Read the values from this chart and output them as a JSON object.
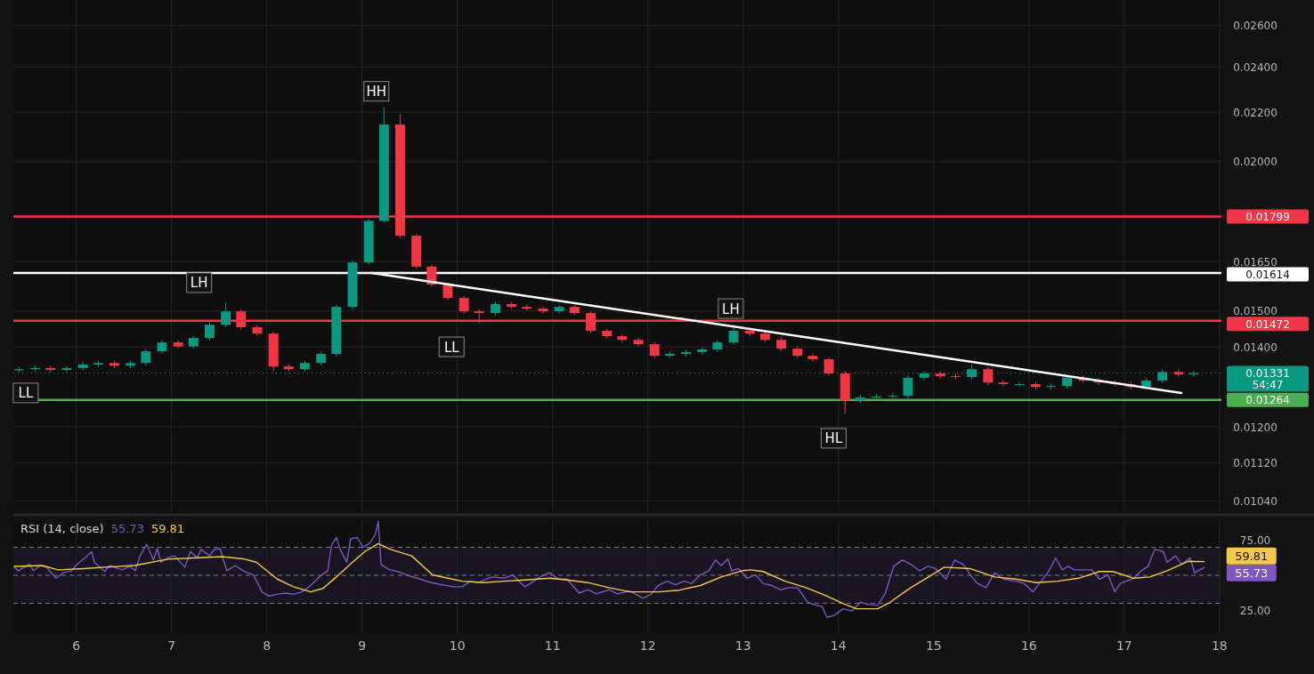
{
  "chart_data": [
    {
      "type": "candlestick",
      "log": true,
      "grid": true,
      "tick_labels": "y",
      "xlim": [
        5.34,
        18.02
      ],
      "xticks": [
        6,
        7,
        8,
        9,
        10,
        11,
        12,
        13,
        14,
        15,
        16,
        17,
        18
      ],
      "ylim": [
        0.0102,
        0.0273
      ],
      "yticks": [
        {
          "value": 0.0104,
          "label": "0.01040"
        },
        {
          "value": 0.0112,
          "label": "0.01120"
        },
        {
          "value": 0.012,
          "label": "0.01200"
        },
        {
          "value": 0.014,
          "label": "0.01400"
        },
        {
          "value": 0.015,
          "label": "0.01500"
        },
        {
          "value": 0.0165,
          "label": "0.01650"
        },
        {
          "value": 0.02,
          "label": "0.02000"
        },
        {
          "value": 0.022,
          "label": "0.02200"
        },
        {
          "value": 0.024,
          "label": "0.02400"
        },
        {
          "value": 0.026,
          "label": "0.02600"
        }
      ],
      "x": [
        5.4,
        5.57,
        5.73,
        5.9,
        6.07,
        6.23,
        6.4,
        6.57,
        6.73,
        6.9,
        7.07,
        7.23,
        7.4,
        7.57,
        7.73,
        7.9,
        8.07,
        8.23,
        8.4,
        8.57,
        8.73,
        8.9,
        9.07,
        9.23,
        9.4,
        9.57,
        9.73,
        9.9,
        10.07,
        10.23,
        10.4,
        10.57,
        10.73,
        10.9,
        11.07,
        11.23,
        11.4,
        11.57,
        11.73,
        11.9,
        12.07,
        12.23,
        12.4,
        12.57,
        12.73,
        12.9,
        13.07,
        13.23,
        13.4,
        13.57,
        13.73,
        13.9,
        14.07,
        14.23,
        14.4,
        14.57,
        14.73,
        14.9,
        15.07,
        15.23,
        15.4,
        15.57,
        15.73,
        15.9,
        16.07,
        16.23,
        16.4,
        16.57,
        16.73,
        16.9,
        17.07,
        17.23,
        17.4,
        17.57,
        17.73
      ],
      "ohlc": [
        [
          0.01338,
          0.01347,
          0.01333,
          0.01341
        ],
        [
          0.01341,
          0.0135,
          0.01335,
          0.01344
        ],
        [
          0.01344,
          0.0135,
          0.01333,
          0.01339
        ],
        [
          0.01339,
          0.0135,
          0.01333,
          0.01344
        ],
        [
          0.01344,
          0.01359,
          0.01338,
          0.01353
        ],
        [
          0.01353,
          0.01363,
          0.01347,
          0.01357
        ],
        [
          0.01357,
          0.01363,
          0.01344,
          0.0135
        ],
        [
          0.0135,
          0.01363,
          0.01344,
          0.01357
        ],
        [
          0.01357,
          0.01394,
          0.01351,
          0.01388
        ],
        [
          0.01388,
          0.01418,
          0.01382,
          0.01412
        ],
        [
          0.01412,
          0.01418,
          0.01395,
          0.01401
        ],
        [
          0.01401,
          0.0143,
          0.01395,
          0.01424
        ],
        [
          0.01424,
          0.01467,
          0.01418,
          0.01461
        ],
        [
          0.01461,
          0.01525,
          0.01455,
          0.01499
        ],
        [
          0.01499,
          0.01505,
          0.01448,
          0.01454
        ],
        [
          0.01454,
          0.0146,
          0.0143,
          0.01436
        ],
        [
          0.01436,
          0.01442,
          0.01335,
          0.01348
        ],
        [
          0.01348,
          0.01354,
          0.01335,
          0.01341
        ],
        [
          0.01341,
          0.01363,
          0.01335,
          0.01357
        ],
        [
          0.01357,
          0.01387,
          0.01351,
          0.01381
        ],
        [
          0.01381,
          0.01518,
          0.01375,
          0.01512
        ],
        [
          0.01512,
          0.01653,
          0.01506,
          0.01647
        ],
        [
          0.01647,
          0.0179,
          0.01641,
          0.01784
        ],
        [
          0.01784,
          0.0222,
          0.01778,
          0.02148
        ],
        [
          0.02148,
          0.0219,
          0.01728,
          0.01734
        ],
        [
          0.01734,
          0.0174,
          0.01628,
          0.01634
        ],
        [
          0.01634,
          0.0164,
          0.01572,
          0.01578
        ],
        [
          0.01578,
          0.01584,
          0.01532,
          0.01538
        ],
        [
          0.01538,
          0.01544,
          0.01493,
          0.01499
        ],
        [
          0.01499,
          0.01505,
          0.01465,
          0.01494
        ],
        [
          0.01494,
          0.01526,
          0.01488,
          0.0152
        ],
        [
          0.0152,
          0.01526,
          0.01506,
          0.01512
        ],
        [
          0.01512,
          0.01518,
          0.01501,
          0.01507
        ],
        [
          0.01507,
          0.01513,
          0.01493,
          0.01499
        ],
        [
          0.01499,
          0.01518,
          0.01493,
          0.01512
        ],
        [
          0.01512,
          0.01518,
          0.01488,
          0.01494
        ],
        [
          0.01494,
          0.015,
          0.01438,
          0.01444
        ],
        [
          0.01444,
          0.0145,
          0.01423,
          0.01429
        ],
        [
          0.01429,
          0.01435,
          0.01413,
          0.01419
        ],
        [
          0.01419,
          0.01425,
          0.01401,
          0.01407
        ],
        [
          0.01407,
          0.01413,
          0.0137,
          0.01376
        ],
        [
          0.01376,
          0.01387,
          0.0137,
          0.01381
        ],
        [
          0.01381,
          0.01392,
          0.01375,
          0.01386
        ],
        [
          0.01386,
          0.01399,
          0.0138,
          0.01393
        ],
        [
          0.01393,
          0.01418,
          0.01387,
          0.01412
        ],
        [
          0.01412,
          0.01461,
          0.01406,
          0.01444
        ],
        [
          0.01444,
          0.0145,
          0.0143,
          0.01436
        ],
        [
          0.01436,
          0.01442,
          0.01413,
          0.01419
        ],
        [
          0.01419,
          0.01425,
          0.01389,
          0.01395
        ],
        [
          0.01395,
          0.01401,
          0.0137,
          0.01376
        ],
        [
          0.01376,
          0.01382,
          0.01361,
          0.01367
        ],
        [
          0.01367,
          0.01373,
          0.01324,
          0.0133
        ],
        [
          0.0133,
          0.01336,
          0.01231,
          0.01262
        ],
        [
          0.01262,
          0.01276,
          0.01256,
          0.0127
        ],
        [
          0.0127,
          0.01278,
          0.01264,
          0.01272
        ],
        [
          0.01272,
          0.0128,
          0.01266,
          0.01274
        ],
        [
          0.01274,
          0.01325,
          0.01268,
          0.01319
        ],
        [
          0.01319,
          0.01336,
          0.01313,
          0.0133
        ],
        [
          0.0133,
          0.01336,
          0.01317,
          0.01323
        ],
        [
          0.01323,
          0.01329,
          0.01315,
          0.01321
        ],
        [
          0.01321,
          0.01353,
          0.01315,
          0.01341
        ],
        [
          0.01341,
          0.01347,
          0.01301,
          0.01307
        ],
        [
          0.01307,
          0.01313,
          0.01297,
          0.01303
        ],
        [
          0.01303,
          0.01309,
          0.01297,
          0.01303
        ],
        [
          0.01303,
          0.01309,
          0.0129,
          0.01296
        ],
        [
          0.01296,
          0.01304,
          0.0129,
          0.01298
        ],
        [
          0.01298,
          0.01325,
          0.01292,
          0.01319
        ],
        [
          0.01319,
          0.01325,
          0.01306,
          0.01312
        ],
        [
          0.01312,
          0.01318,
          0.01301,
          0.01307
        ],
        [
          0.01307,
          0.01313,
          0.01297,
          0.01303
        ],
        [
          0.01303,
          0.01309,
          0.0129,
          0.01296
        ],
        [
          0.01296,
          0.01318,
          0.0129,
          0.01312
        ],
        [
          0.01312,
          0.0134,
          0.01306,
          0.01334
        ],
        [
          0.01334,
          0.0134,
          0.01322,
          0.01328
        ],
        [
          0.01328,
          0.01337,
          0.01322,
          0.01331
        ]
      ],
      "series": [
        {
          "type": "line",
          "color": "#ffffff",
          "x": [
            9.1,
            17.6
          ],
          "values": [
            0.01614,
            0.01281
          ]
        }
      ],
      "ref_lines": [
        {
          "axis": "y",
          "value": 0.01799,
          "label": "0.01799",
          "color": "#f23645"
        },
        {
          "axis": "y",
          "value": 0.01614,
          "label": "0.01614",
          "color": "#ffffff"
        },
        {
          "axis": "y",
          "value": 0.01472,
          "label": "0.01472",
          "color": "#f23645"
        },
        {
          "axis": "y",
          "value": 0.01331,
          "label": "0.01331",
          "color": "#089981",
          "line_style": "dotted"
        },
        {
          "axis": "y",
          "value": 0.01264,
          "label": "0.01264",
          "color": "#4caf50"
        }
      ],
      "annotations": [
        {
          "text": "HH",
          "x": 9.15,
          "y": 0.0229
        },
        {
          "text": "LH",
          "x": 7.29,
          "y": 0.01584
        },
        {
          "text": "LL",
          "x": 5.47,
          "y": 0.01281
        },
        {
          "text": "LL",
          "x": 9.94,
          "y": 0.014
        },
        {
          "text": "LH",
          "x": 12.87,
          "y": 0.01507
        },
        {
          "text": "HL",
          "x": 13.95,
          "y": 0.01174
        },
        "54:47"
      ]
    },
    {
      "type": "line",
      "title": "RSI (14, close)",
      "grid": "x",
      "xlim": [
        5.34,
        18.02
      ],
      "xticks": [
        6,
        7,
        8,
        9,
        10,
        11,
        12,
        13,
        14,
        15,
        16,
        17,
        18
      ],
      "ylim": [
        8.7,
        89.4
      ],
      "yticks": [
        {
          "value": 25,
          "label": "25.00"
        },
        {
          "value": 75,
          "label": "75.00"
        }
      ],
      "bands": [
        {
          "axis": "y",
          "from": 30,
          "to": 70,
          "color": "#7e57c2"
        }
      ],
      "ref_lines": [
        {
          "axis": "y",
          "value": 70,
          "color": "#787b86",
          "line_style": "dashed"
        },
        {
          "axis": "y",
          "value": 50,
          "color": "#787b86",
          "line_style": "dashed"
        },
        {
          "axis": "y",
          "value": 30,
          "color": "#787b86",
          "line_style": "dashed"
        }
      ],
      "series": [
        {
          "color": "#7e57c2",
          "x": [
            5.35,
            5.39,
            5.51,
            5.55,
            5.62,
            5.68,
            5.79,
            5.86,
            5.95,
            6.01,
            6.1,
            6.16,
            6.19,
            6.3,
            6.35,
            6.48,
            6.56,
            6.62,
            6.67,
            6.74,
            6.81,
            6.85,
            6.89,
            6.96,
            7.03,
            7.14,
            7.2,
            7.27,
            7.31,
            7.4,
            7.45,
            7.51,
            7.58,
            7.67,
            7.75,
            7.86,
            7.95,
            8.02,
            8.11,
            8.2,
            8.28,
            8.37,
            8.46,
            8.55,
            8.64,
            8.68,
            8.73,
            8.77,
            8.84,
            8.88,
            8.95,
            9.01,
            9.08,
            9.14,
            9.17,
            9.2,
            9.28,
            9.39,
            9.5,
            9.61,
            9.7,
            9.83,
            9.96,
            10.05,
            10.14,
            10.22,
            10.36,
            10.49,
            10.58,
            10.71,
            10.78,
            10.89,
            10.97,
            11.06,
            11.15,
            11.28,
            11.37,
            11.46,
            11.59,
            11.68,
            11.81,
            11.95,
            12.03,
            12.11,
            12.2,
            12.29,
            12.38,
            12.46,
            12.55,
            12.64,
            12.71,
            12.77,
            12.84,
            12.88,
            12.95,
            13.04,
            13.13,
            13.21,
            13.3,
            13.39,
            13.48,
            13.57,
            13.68,
            13.77,
            13.83,
            13.88,
            13.96,
            14.05,
            14.14,
            14.23,
            14.32,
            14.41,
            14.49,
            14.58,
            14.67,
            14.76,
            14.85,
            14.94,
            15.02,
            15.13,
            15.22,
            15.31,
            15.4,
            15.46,
            15.55,
            15.64,
            15.73,
            15.86,
            15.95,
            16.04,
            16.13,
            16.21,
            16.28,
            16.35,
            16.41,
            16.48,
            16.66,
            16.74,
            16.83,
            16.9,
            16.96,
            17.1,
            17.18,
            17.25,
            17.32,
            17.41,
            17.45,
            17.54,
            17.6,
            17.69,
            17.74,
            17.84
          ],
          "values": [
            55.8,
            53.3,
            57.9,
            53.3,
            57.0,
            56.4,
            47.9,
            51.8,
            53.3,
            57.9,
            63.0,
            67.0,
            59.4,
            52.7,
            57.0,
            53.9,
            56.4,
            53.3,
            63.9,
            72.1,
            60.9,
            69.1,
            59.4,
            62.4,
            63.9,
            55.8,
            67.0,
            62.4,
            68.5,
            63.9,
            68.5,
            69.1,
            53.3,
            57.0,
            53.3,
            50.3,
            38.2,
            35.2,
            36.4,
            37.3,
            36.4,
            38.2,
            42.7,
            48.8,
            53.3,
            71.5,
            77.0,
            68.5,
            59.4,
            76.1,
            77.0,
            70.0,
            73.0,
            79.1,
            88.5,
            57.9,
            54.2,
            52.4,
            49.4,
            47.3,
            45.2,
            43.3,
            41.8,
            41.8,
            45.8,
            44.8,
            48.8,
            47.9,
            50.3,
            41.8,
            44.8,
            49.7,
            51.8,
            47.3,
            47.3,
            37.3,
            39.7,
            36.7,
            39.7,
            36.7,
            38.8,
            33.6,
            36.4,
            42.7,
            45.8,
            43.3,
            45.8,
            44.2,
            50.3,
            53.3,
            60.9,
            57.0,
            61.8,
            53.3,
            54.8,
            47.9,
            50.3,
            44.2,
            42.7,
            39.7,
            41.2,
            41.2,
            30.6,
            28.5,
            27.6,
            20.0,
            21.5,
            26.1,
            24.5,
            30.6,
            29.1,
            28.5,
            36.7,
            56.4,
            60.9,
            57.9,
            53.3,
            56.4,
            54.8,
            47.3,
            60.9,
            57.9,
            48.8,
            44.2,
            41.2,
            51.8,
            47.3,
            45.8,
            44.2,
            38.2,
            45.8,
            53.3,
            62.4,
            53.9,
            56.4,
            53.9,
            53.9,
            47.3,
            50.3,
            38.2,
            44.2,
            47.9,
            53.3,
            56.4,
            68.5,
            67.0,
            59.4,
            63.9,
            57.9,
            62.4,
            51.8,
            55.7
          ]
        },
        {
          "color": "#f7c948",
          "x": [
            5.35,
            5.64,
            5.81,
            6.08,
            6.3,
            6.61,
            6.96,
            7.23,
            7.54,
            7.75,
            7.89,
            8.11,
            8.28,
            8.46,
            8.59,
            8.73,
            8.9,
            9.03,
            9.17,
            9.3,
            9.52,
            9.74,
            10.05,
            10.27,
            10.49,
            10.71,
            10.97,
            11.15,
            11.37,
            11.59,
            11.81,
            12.11,
            12.33,
            12.55,
            12.77,
            12.99,
            13.08,
            13.21,
            13.44,
            13.66,
            13.88,
            14.05,
            14.19,
            14.41,
            14.54,
            14.76,
            14.98,
            15.11,
            15.38,
            15.64,
            15.86,
            16.08,
            16.3,
            16.52,
            16.74,
            16.88,
            17.1,
            17.27,
            17.45,
            17.67,
            17.84
          ],
          "values": [
            56.4,
            57.0,
            53.9,
            54.8,
            55.8,
            57.0,
            61.5,
            62.4,
            63.3,
            61.8,
            59.4,
            47.3,
            41.8,
            38.2,
            40.6,
            48.8,
            59.4,
            67.0,
            72.7,
            68.5,
            63.9,
            50.3,
            45.8,
            44.8,
            45.8,
            46.7,
            47.9,
            46.7,
            44.8,
            41.2,
            38.2,
            38.2,
            39.4,
            42.7,
            48.8,
            53.3,
            53.9,
            52.7,
            45.8,
            41.2,
            35.2,
            29.7,
            26.1,
            26.1,
            30.6,
            41.2,
            50.3,
            55.8,
            54.8,
            48.8,
            47.3,
            44.8,
            45.8,
            47.9,
            52.7,
            52.7,
            47.9,
            48.8,
            53.3,
            60.0,
            59.8
          ]
        }
      ],
      "annotations": [
        {
          "text": "55.73",
          "x": 17.84,
          "y": 55.73
        },
        {
          "text": "59.81",
          "x": 17.84,
          "y": 59.81
        }
      ]
    }
  ]
}
